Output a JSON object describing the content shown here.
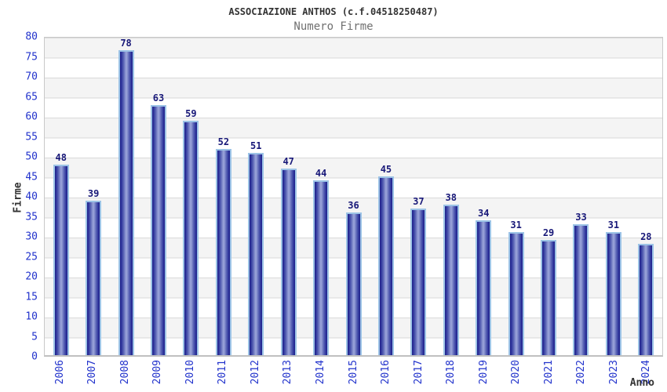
{
  "header": {
    "title": "ASSOCIAZIONE ANTHOS (c.f.04518250487)",
    "subtitle": "Numero Firme"
  },
  "chart_data": {
    "type": "bar",
    "title": "ASSOCIAZIONE ANTHOS (c.f.04518250487)",
    "subtitle": "Numero Firme",
    "xlabel": "Anno",
    "ylabel": "Firme",
    "categories": [
      "2006",
      "2007",
      "2008",
      "2009",
      "2010",
      "2011",
      "2012",
      "2013",
      "2014",
      "2015",
      "2016",
      "2017",
      "2018",
      "2019",
      "2020",
      "2021",
      "2022",
      "2023",
      "2024"
    ],
    "values": [
      48,
      39,
      78,
      63,
      59,
      52,
      51,
      47,
      44,
      36,
      45,
      37,
      38,
      34,
      31,
      29,
      33,
      31,
      28
    ],
    "ylim": [
      0,
      80
    ],
    "ytick_step": 5,
    "yticks": [
      0,
      5,
      10,
      15,
      20,
      25,
      30,
      35,
      40,
      45,
      50,
      55,
      60,
      65,
      70,
      75,
      80
    ],
    "grid": "horizontal gridlines every 5 units with alternating band fill",
    "legend": "none",
    "value_labels": "above bars",
    "colors": {
      "bar_edge": "#1f1f88",
      "bar_center": "#9aa4da",
      "bar_border": "#9cc3e6",
      "tick_label": "#2233cc",
      "value_label": "#181878",
      "band_gray": "#f4f4f4",
      "band_white": "#ffffff",
      "gridline": "#d9d9d9",
      "title": "#333333",
      "subtitle": "#707070"
    }
  }
}
